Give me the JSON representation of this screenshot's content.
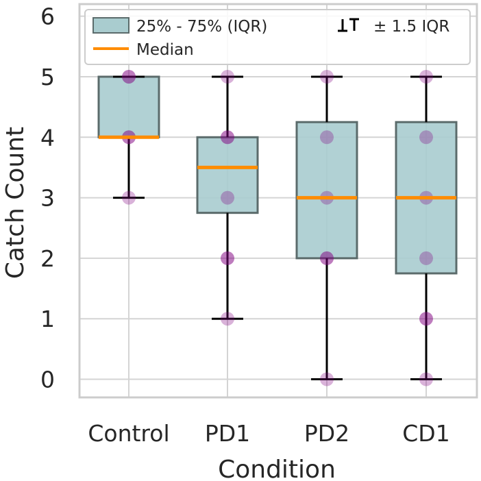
{
  "chart_data": {
    "type": "box",
    "xlabel": "Condition",
    "ylabel": "Catch Count",
    "ylim": [
      -0.3,
      6.2
    ],
    "yticks": [
      0,
      1,
      2,
      3,
      4,
      5,
      6
    ],
    "grid": true,
    "categories": [
      "Control",
      "PD1",
      "PD2",
      "CD1"
    ],
    "boxes": [
      {
        "name": "Control",
        "q1": 4,
        "median": 4,
        "q3": 5,
        "whisker_low": 3,
        "whisker_high": 5
      },
      {
        "name": "PD1",
        "q1": 2.75,
        "median": 3.5,
        "q3": 4,
        "whisker_low": 1,
        "whisker_high": 5
      },
      {
        "name": "PD2",
        "q1": 2,
        "median": 3,
        "q3": 4.25,
        "whisker_low": 0,
        "whisker_high": 5
      },
      {
        "name": "CD1",
        "q1": 1.75,
        "median": 3,
        "q3": 4.25,
        "whisker_low": 0,
        "whisker_high": 5
      }
    ],
    "points": [
      {
        "category": "Control",
        "values": [
          5,
          5,
          4,
          4,
          3
        ]
      },
      {
        "category": "PD1",
        "values": [
          5,
          4,
          4,
          3,
          2,
          2,
          1
        ]
      },
      {
        "category": "PD2",
        "values": [
          5,
          4,
          3,
          2,
          2,
          0
        ]
      },
      {
        "category": "CD1",
        "values": [
          5,
          4,
          3,
          2,
          1,
          1,
          0
        ]
      }
    ],
    "legend": {
      "position": "top",
      "entries": [
        {
          "label": "25% - 75% (IQR)",
          "kind": "box"
        },
        {
          "label": "± 1.5 IQR",
          "kind": "whisker"
        },
        {
          "label": "Median",
          "kind": "line"
        }
      ]
    },
    "colors": {
      "box_fill": "#a9cccf",
      "box_edge": "#5b6b6b",
      "median": "#ff8c00",
      "point": "#800080",
      "whisker": "#000000",
      "grid": "#d4d4d4",
      "frame": "#cccccc"
    }
  }
}
